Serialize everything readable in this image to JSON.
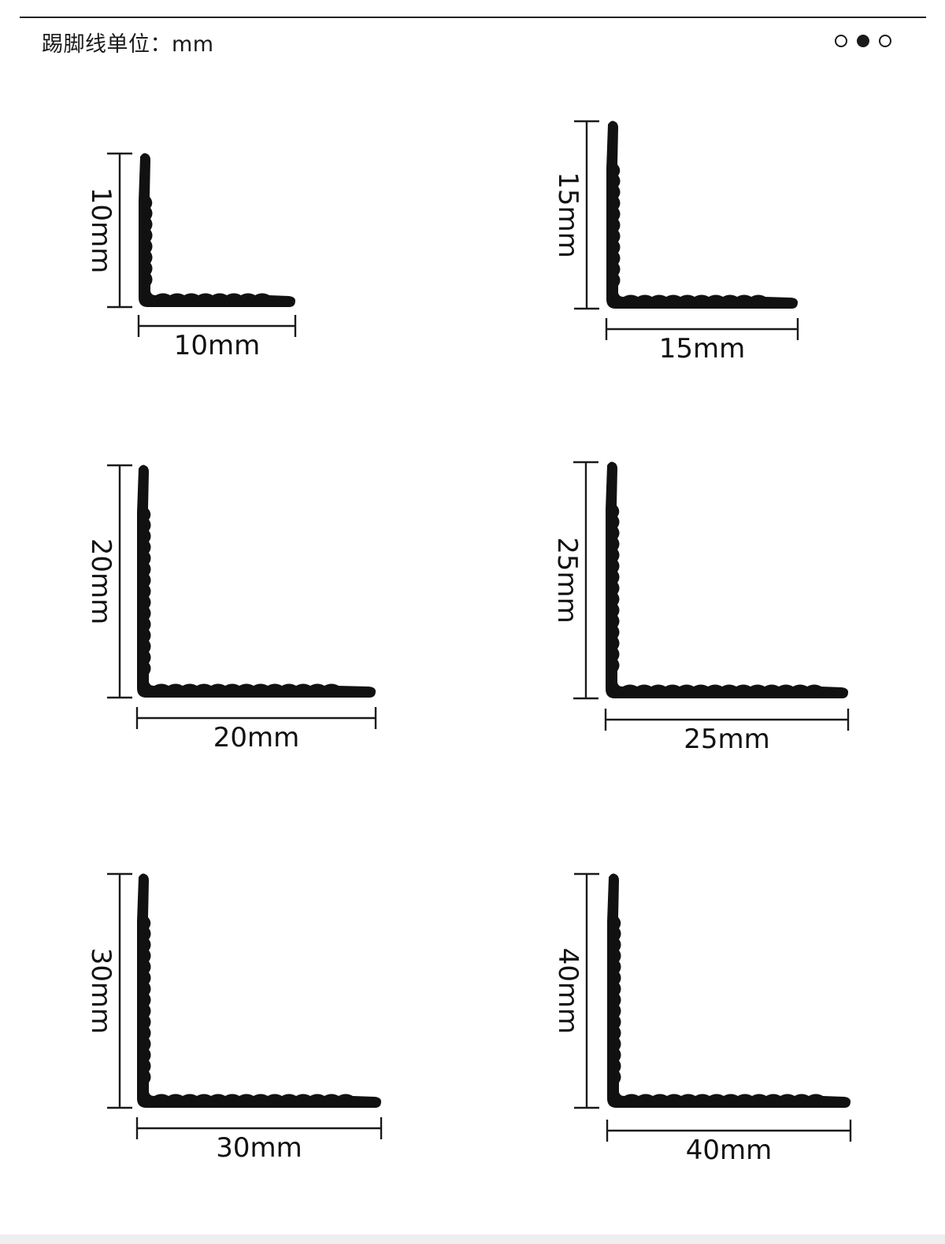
{
  "header": {
    "title": "踢脚线单位：mm",
    "pager": {
      "count": 3,
      "active_index": 1
    }
  },
  "profiles": [
    {
      "width_label": "10mm",
      "height_label": "10mm"
    },
    {
      "width_label": "15mm",
      "height_label": "15mm"
    },
    {
      "width_label": "20mm",
      "height_label": "20mm"
    },
    {
      "width_label": "25mm",
      "height_label": "25mm"
    },
    {
      "width_label": "30mm",
      "height_label": "30mm"
    },
    {
      "width_label": "40mm",
      "height_label": "40mm"
    }
  ],
  "colors": {
    "profile": "#111111",
    "line": "#1a1a1a",
    "text": "#111111"
  }
}
